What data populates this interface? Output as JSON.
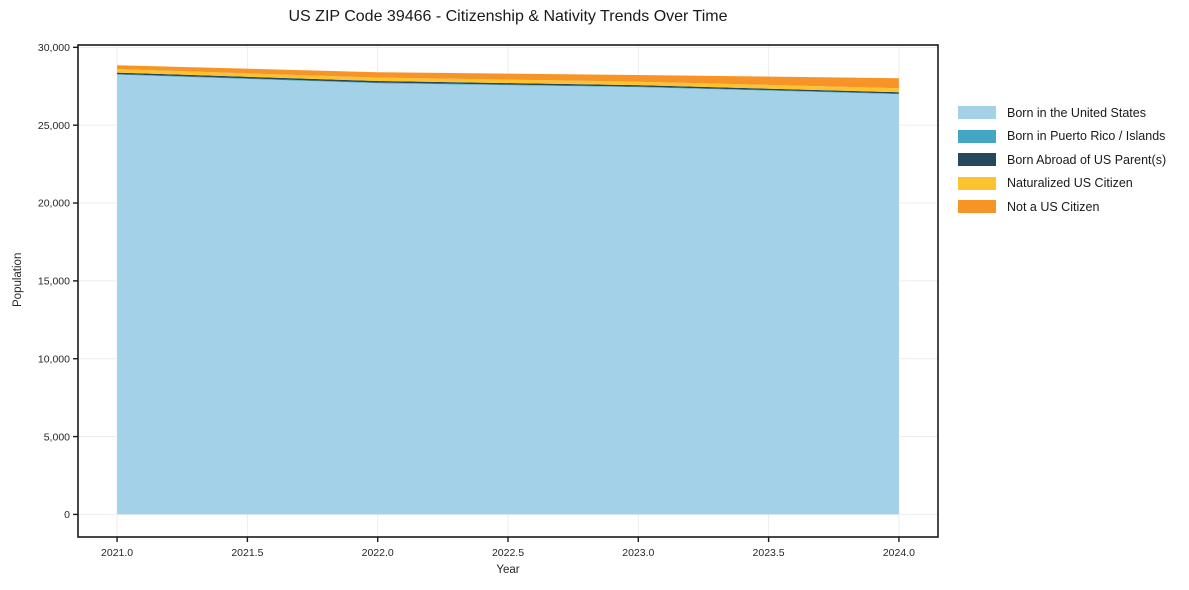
{
  "title": "US ZIP Code 39466 - Citizenship & Nativity Trends Over Time",
  "chart_data": {
    "type": "area",
    "stacked": true,
    "title": "US ZIP Code 39466 - Citizenship & Nativity Trends Over Time",
    "xlabel": "Year",
    "ylabel": "Population",
    "x": [
      2021,
      2022,
      2023,
      2024
    ],
    "series": [
      {
        "name": "Born in the United States",
        "color": "#a3d2e8",
        "values": [
          28240,
          27690,
          27440,
          26990
        ]
      },
      {
        "name": "Born in Puerto Rico / Islands",
        "color": "#45a5c5",
        "values": [
          40,
          45,
          40,
          40
        ]
      },
      {
        "name": "Born Abroad of US Parent(s)",
        "color": "#25485c",
        "values": [
          95,
          100,
          95,
          90
        ]
      },
      {
        "name": "Naturalized US Citizen",
        "color": "#fcc32f",
        "values": [
          225,
          220,
          215,
          255
        ]
      },
      {
        "name": "Not a US Citizen",
        "color": "#f79428",
        "values": [
          250,
          345,
          430,
          640
        ]
      }
    ],
    "xticks": [
      2021.0,
      2021.5,
      2022.0,
      2022.5,
      2023.0,
      2023.5,
      2024.0
    ],
    "yticks": [
      0,
      5000,
      10000,
      15000,
      20000,
      25000,
      30000
    ],
    "xtick_labels": [
      "2021.0",
      "2021.5",
      "2022.0",
      "2022.5",
      "2023.0",
      "2023.5",
      "2024.0"
    ],
    "ytick_labels": [
      "0",
      "5,000",
      "10,000",
      "15,000",
      "20,000",
      "25,000",
      "30,000"
    ],
    "xlim": [
      2020.85,
      2024.15
    ],
    "ylim": [
      -1450,
      30150
    ],
    "grid": true,
    "grid_color": "#ececec",
    "spine_color": "#1a1a1a",
    "text_color": "#262626",
    "legend_position": "right-outside"
  }
}
